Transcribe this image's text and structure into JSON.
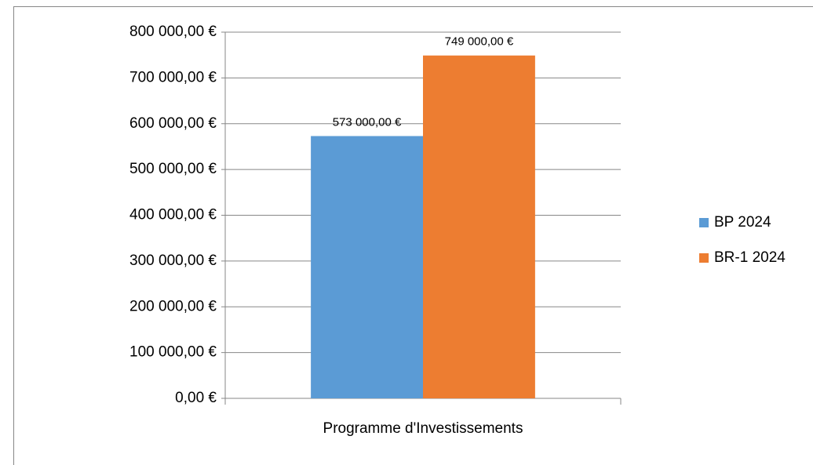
{
  "chart_data": {
    "type": "bar",
    "categories": [
      "Programme d'Investissements"
    ],
    "series": [
      {
        "name": "BP 2024",
        "color": "#5b9bd5",
        "values": [
          573000
        ],
        "value_labels": [
          "573 000,00 €"
        ]
      },
      {
        "name": "BR-1 2024",
        "color": "#ed7d31",
        "values": [
          749000
        ],
        "value_labels": [
          "749 000,00 €"
        ]
      }
    ],
    "ylim": [
      0,
      800000
    ],
    "yticks": [
      {
        "value": 0,
        "label": "0,00 €"
      },
      {
        "value": 100000,
        "label": "100 000,00 €"
      },
      {
        "value": 200000,
        "label": "200 000,00 €"
      },
      {
        "value": 300000,
        "label": "300 000,00 €"
      },
      {
        "value": 400000,
        "label": "400 000,00 €"
      },
      {
        "value": 500000,
        "label": "500 000,00 €"
      },
      {
        "value": 600000,
        "label": "600 000,00 €"
      },
      {
        "value": 700000,
        "label": "700 000,00 €"
      },
      {
        "value": 800000,
        "label": "800 000,00 €"
      }
    ],
    "grid": true,
    "legend": "right"
  }
}
